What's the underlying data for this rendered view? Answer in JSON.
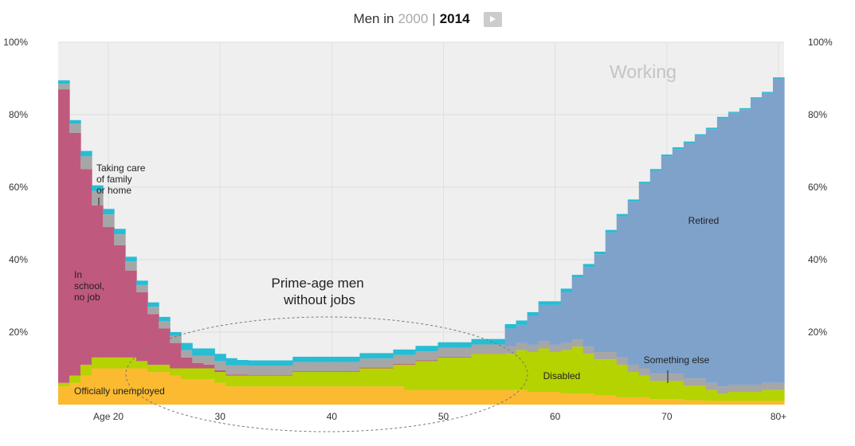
{
  "header": {
    "prefix": "Men in",
    "year_inactive": "2000",
    "separator": "|",
    "year_active": "2014",
    "play_icon": "play-icon"
  },
  "colors": {
    "background": "#efefef",
    "working_label": "#c4c4c4",
    "unemployed": "#fbba30",
    "disabled": "#b5d300",
    "school": "#c0597e",
    "retired": "#7fa2cb",
    "other": "#a6a6a6",
    "family": "#27bdd4"
  },
  "labels": {
    "working": "Working",
    "retired": "Retired",
    "school": [
      "In",
      "school,",
      "no job"
    ],
    "family": [
      "Taking care",
      "of family",
      "or home"
    ],
    "unemployed": "Officially unemployed",
    "disabled": "Disabled",
    "something_else": "Something else",
    "prime_age": [
      "Prime-age men",
      "without jobs"
    ]
  },
  "chart_data": {
    "type": "area",
    "stacked": true,
    "title": "Men in 2014",
    "xlabel": "Age",
    "ylabel": "",
    "ylim": [
      0,
      100
    ],
    "yticks": [
      {
        "value": 20,
        "label": "20%"
      },
      {
        "value": 40,
        "label": "40%"
      },
      {
        "value": 60,
        "label": "60%"
      },
      {
        "value": 80,
        "label": "80%"
      },
      {
        "value": 100,
        "label": "100%"
      }
    ],
    "xticks": [
      {
        "age": 20,
        "label": "Age 20"
      },
      {
        "age": 30,
        "label": "30"
      },
      {
        "age": 40,
        "label": "40"
      },
      {
        "age": 50,
        "label": "50"
      },
      {
        "age": 60,
        "label": "60"
      },
      {
        "age": 70,
        "label": "70"
      },
      {
        "age": 80,
        "label": "80+"
      }
    ],
    "ages": [
      16,
      17,
      18,
      19,
      20,
      21,
      22,
      23,
      24,
      25,
      26,
      27,
      28,
      29,
      30,
      31,
      32,
      33,
      34,
      35,
      36,
      37,
      38,
      39,
      40,
      41,
      42,
      43,
      44,
      45,
      46,
      47,
      48,
      49,
      50,
      51,
      52,
      53,
      54,
      55,
      56,
      57,
      58,
      59,
      60,
      61,
      62,
      63,
      64,
      65,
      66,
      67,
      68,
      69,
      70,
      71,
      72,
      73,
      74,
      75,
      76,
      77,
      78,
      79,
      80
    ],
    "series": [
      {
        "name": "Officially unemployed",
        "key": "unemployed",
        "values": [
          5,
          6,
          8,
          10,
          10,
          10,
          10,
          10,
          9,
          9,
          8,
          7,
          7,
          7,
          6,
          5,
          5,
          5,
          5,
          5,
          5,
          5,
          5,
          5,
          5,
          5,
          5,
          5,
          5,
          5,
          5,
          4,
          4,
          4,
          4,
          4,
          4,
          4,
          4,
          4,
          4,
          4,
          3.5,
          3.5,
          3.5,
          3,
          3,
          3,
          2.5,
          2.5,
          2,
          2,
          2,
          1.5,
          1.5,
          1.5,
          1.2,
          1.2,
          1,
          1,
          1,
          1,
          1,
          1,
          1
        ]
      },
      {
        "name": "Disabled",
        "key": "disabled",
        "values": [
          1,
          2,
          3,
          3,
          3,
          3,
          3,
          2,
          2,
          2,
          2,
          3,
          3,
          3,
          3,
          3,
          3,
          3,
          3,
          3,
          3,
          4,
          4,
          4,
          4,
          4,
          4,
          5,
          5,
          5,
          6,
          7,
          8,
          8,
          9,
          9,
          9,
          10,
          10,
          10,
          10,
          11,
          11,
          12,
          11,
          12,
          13,
          11,
          10,
          10,
          9,
          7,
          6,
          5,
          5,
          5,
          4,
          4,
          3,
          2,
          2.5,
          2.5,
          2.5,
          3,
          3
        ]
      },
      {
        "name": "In school, no job",
        "key": "school",
        "values": [
          81,
          67,
          54,
          42,
          36,
          31,
          24,
          19,
          14,
          10,
          7,
          3,
          1.5,
          1,
          0.5,
          0.3,
          0.3,
          0.2,
          0.2,
          0.2,
          0.2,
          0.2,
          0.2,
          0.2,
          0.2,
          0.2,
          0.2,
          0.2,
          0.2,
          0.2,
          0.2,
          0.2,
          0.2,
          0.2,
          0.2,
          0.2,
          0.2,
          0.1,
          0.1,
          0.1,
          0,
          0,
          0,
          0,
          0,
          0,
          0,
          0,
          0,
          0,
          0,
          0,
          0,
          0,
          0,
          0,
          0,
          0,
          0,
          0,
          0,
          0,
          0,
          0,
          0
        ]
      },
      {
        "name": "Something else",
        "key": "other",
        "values": [
          1.5,
          2.5,
          3.5,
          4,
          3.5,
          3,
          2.5,
          2,
          2,
          2,
          2,
          2,
          2,
          2.5,
          2.5,
          2.5,
          2.5,
          2.5,
          2.5,
          2.5,
          2.5,
          2.5,
          2.5,
          2.5,
          2.5,
          2.5,
          2.5,
          2.5,
          2.5,
          2.5,
          2.5,
          2.5,
          2.5,
          2.5,
          2.5,
          2.5,
          2.5,
          2.5,
          2.5,
          2.5,
          2,
          2,
          2,
          2,
          2,
          2,
          2,
          2,
          2,
          2,
          2,
          2,
          2,
          2,
          2,
          2,
          2,
          2,
          2,
          2,
          2,
          2,
          2,
          2,
          2
        ]
      },
      {
        "name": "Retired",
        "key": "retired",
        "values": [
          0,
          0,
          0,
          0,
          0,
          0,
          0,
          0,
          0,
          0,
          0,
          0,
          0,
          0,
          0,
          0,
          0,
          0,
          0,
          0,
          0,
          0,
          0,
          0,
          0,
          0,
          0,
          0,
          0,
          0,
          0,
          0,
          0,
          0,
          0,
          0,
          0,
          0,
          0,
          0,
          5,
          5,
          8,
          10,
          11,
          14,
          17,
          22,
          27,
          33,
          39,
          45,
          51,
          56,
          60,
          62,
          65,
          67,
          70,
          74,
          75,
          76,
          79,
          80,
          84
        ]
      },
      {
        "name": "Taking care of family or home",
        "key": "family",
        "values": [
          1,
          1,
          1.5,
          1.5,
          1.5,
          1.5,
          1.3,
          1.2,
          1.2,
          1.2,
          1,
          2,
          2,
          2,
          2,
          2,
          1.5,
          1.5,
          1.5,
          1.5,
          1.5,
          1.5,
          1.5,
          1.5,
          1.5,
          1.5,
          1.5,
          1.5,
          1.5,
          1.5,
          1.5,
          1.5,
          1.5,
          1.5,
          1.5,
          1.5,
          1.5,
          1.5,
          1.5,
          1.5,
          1.2,
          1.2,
          1,
          1,
          1,
          1,
          0.8,
          0.8,
          0.7,
          0.7,
          0.6,
          0.6,
          0.5,
          0.5,
          0.5,
          0.5,
          0.4,
          0.4,
          0.4,
          0.4,
          0.3,
          0.3,
          0.3,
          0.3,
          0.3
        ]
      }
    ]
  }
}
